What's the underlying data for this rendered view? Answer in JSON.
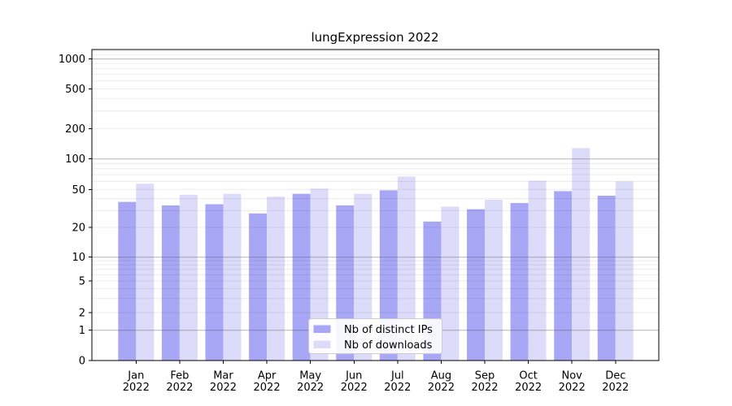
{
  "chart_data": {
    "type": "bar",
    "title": "lungExpression 2022",
    "categories": [
      "Jan",
      "Feb",
      "Mar",
      "Apr",
      "May",
      "Jun",
      "Jul",
      "Aug",
      "Sep",
      "Oct",
      "Nov",
      "Dec"
    ],
    "year_label": "2022",
    "series": [
      {
        "name": "Nb of distinct IPs",
        "color": "#a7a7f5",
        "values": [
          37,
          34,
          35,
          28,
          45,
          34,
          49,
          23,
          31,
          36,
          48,
          43
        ]
      },
      {
        "name": "Nb of downloads",
        "color": "#dcdcfa",
        "values": [
          57,
          44,
          45,
          42,
          51,
          45,
          67,
          33,
          39,
          61,
          128,
          60
        ]
      }
    ],
    "yticks": [
      0,
      1,
      2,
      5,
      10,
      20,
      50,
      100,
      200,
      500,
      1000
    ],
    "minor_gridlines": [
      2,
      3,
      4,
      5,
      6,
      7,
      8,
      9,
      20,
      30,
      40,
      50,
      60,
      70,
      80,
      90,
      200,
      300,
      400,
      500,
      600,
      700,
      800,
      900,
      1100,
      1200
    ],
    "major_gridlines": [
      1,
      10,
      100,
      1000
    ],
    "xlabel": "",
    "ylabel": "",
    "scale": "log-like (linear 0-1, log decades above)",
    "grid": true,
    "legend_position": "inside lower-center",
    "colors": {
      "bar_dark": "#a7a7f5",
      "bar_light": "#dcdcfa",
      "major_grid": "#4d4d4d",
      "minor_grid": "#000000",
      "axis": "#000000",
      "legend_border": "#cccccc",
      "background": "#ffffff"
    }
  }
}
